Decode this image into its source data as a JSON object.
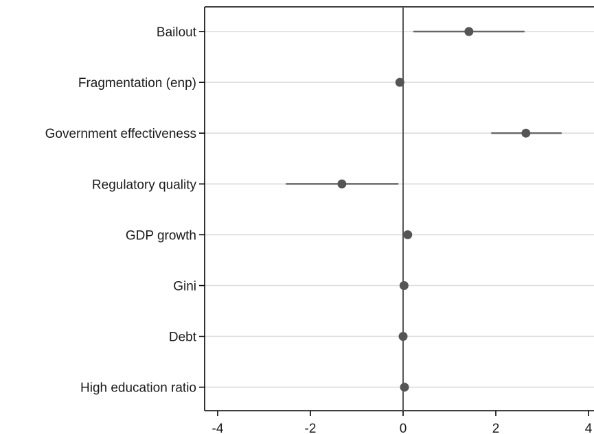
{
  "chart_data": {
    "type": "scatter",
    "title": "",
    "xlabel": "",
    "ylabel": "",
    "xlim": [
      -4.3,
      4.0
    ],
    "x_ticks": [
      -4,
      -2,
      0,
      2,
      4
    ],
    "x_tick_labels": [
      "-4",
      "-2",
      "0",
      "2",
      "4"
    ],
    "reference_line_x": 0,
    "grid": "horizontal",
    "categories": [
      "Bailout",
      "Fragmentation (enp)",
      "Government effectiveness",
      "Regulatory quality",
      "GDP growth",
      "Gini",
      "Debt",
      "High education ratio"
    ],
    "estimates": [
      1.42,
      -0.07,
      2.65,
      -1.32,
      0.1,
      0.02,
      0.0,
      0.03
    ],
    "ci_low": [
      0.22,
      -0.07,
      1.9,
      -2.53,
      0.1,
      0.02,
      0.0,
      0.03
    ],
    "ci_high": [
      2.62,
      -0.07,
      3.42,
      -0.1,
      0.1,
      0.02,
      0.0,
      0.03
    ],
    "colors": {
      "marker": "#555555",
      "ci": "#666666",
      "grid": "#dcdcdc",
      "axis": "#000000",
      "zero": "#555555"
    }
  }
}
